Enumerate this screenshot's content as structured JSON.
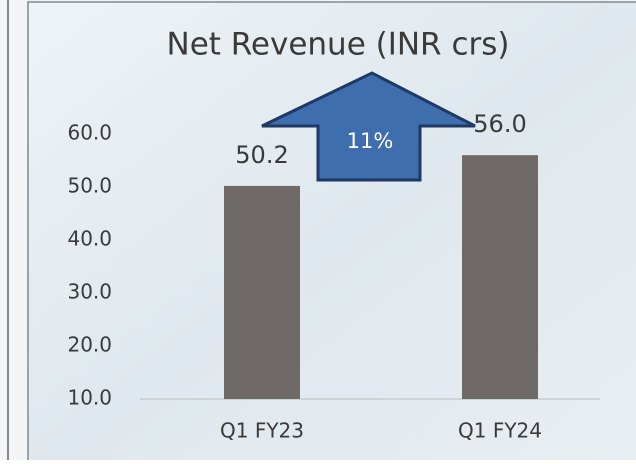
{
  "chart_data": {
    "type": "bar",
    "title": "Net Revenue (INR crs)",
    "categories": [
      "Q1 FY23",
      "Q1 FY24"
    ],
    "values": [
      50.2,
      56.0
    ],
    "value_labels": [
      "50.2",
      "56.0"
    ],
    "color": "#6f6a68",
    "annotation": "11%",
    "ylim": [
      10,
      60
    ],
    "yticks": [
      {
        "value": 10,
        "label": "10.0"
      },
      {
        "value": 20,
        "label": "20.0"
      },
      {
        "value": 30,
        "label": "30.0"
      },
      {
        "value": 40,
        "label": "40.0"
      },
      {
        "value": 50,
        "label": "50.0"
      },
      {
        "value": 60,
        "label": "60.0"
      }
    ],
    "grid": false
  }
}
